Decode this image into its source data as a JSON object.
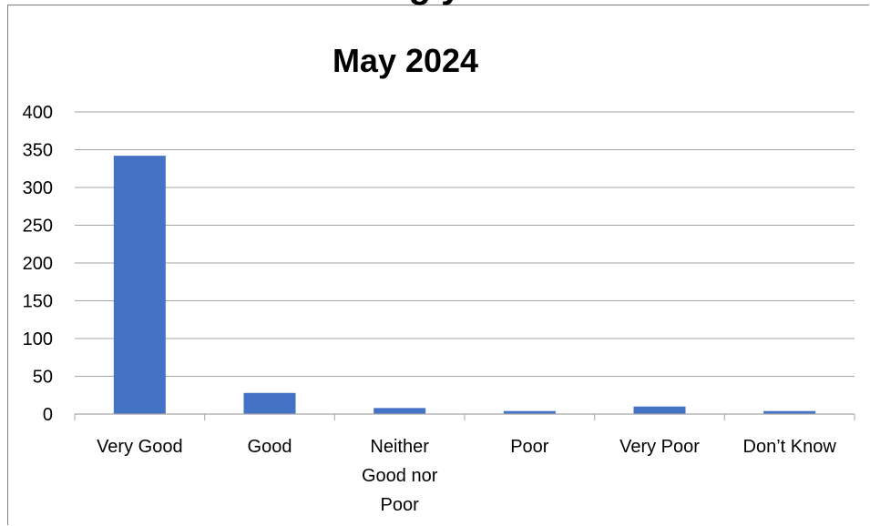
{
  "chart_data": {
    "type": "bar",
    "title": "May 2024",
    "clipped_heading": "g y",
    "categories": [
      "Very Good",
      "Good",
      "Neither Good nor Poor",
      "Poor",
      "Very Poor",
      "Don’t Know"
    ],
    "category_label_lines": [
      [
        "Very Good"
      ],
      [
        "Good"
      ],
      [
        "Neither",
        "Good nor",
        "Poor"
      ],
      [
        "Poor"
      ],
      [
        "Very Poor"
      ],
      [
        "Don’t Know"
      ]
    ],
    "values": [
      342,
      28,
      8,
      4,
      10,
      4
    ],
    "ylim": [
      0,
      400
    ],
    "yticks": [
      "0",
      "50",
      "100",
      "150",
      "200",
      "250",
      "300",
      "350",
      "400"
    ],
    "xlabel": "",
    "ylabel": "",
    "grid": true,
    "bar_color": "#4472C4",
    "grid_color": "#A6A6A6"
  }
}
